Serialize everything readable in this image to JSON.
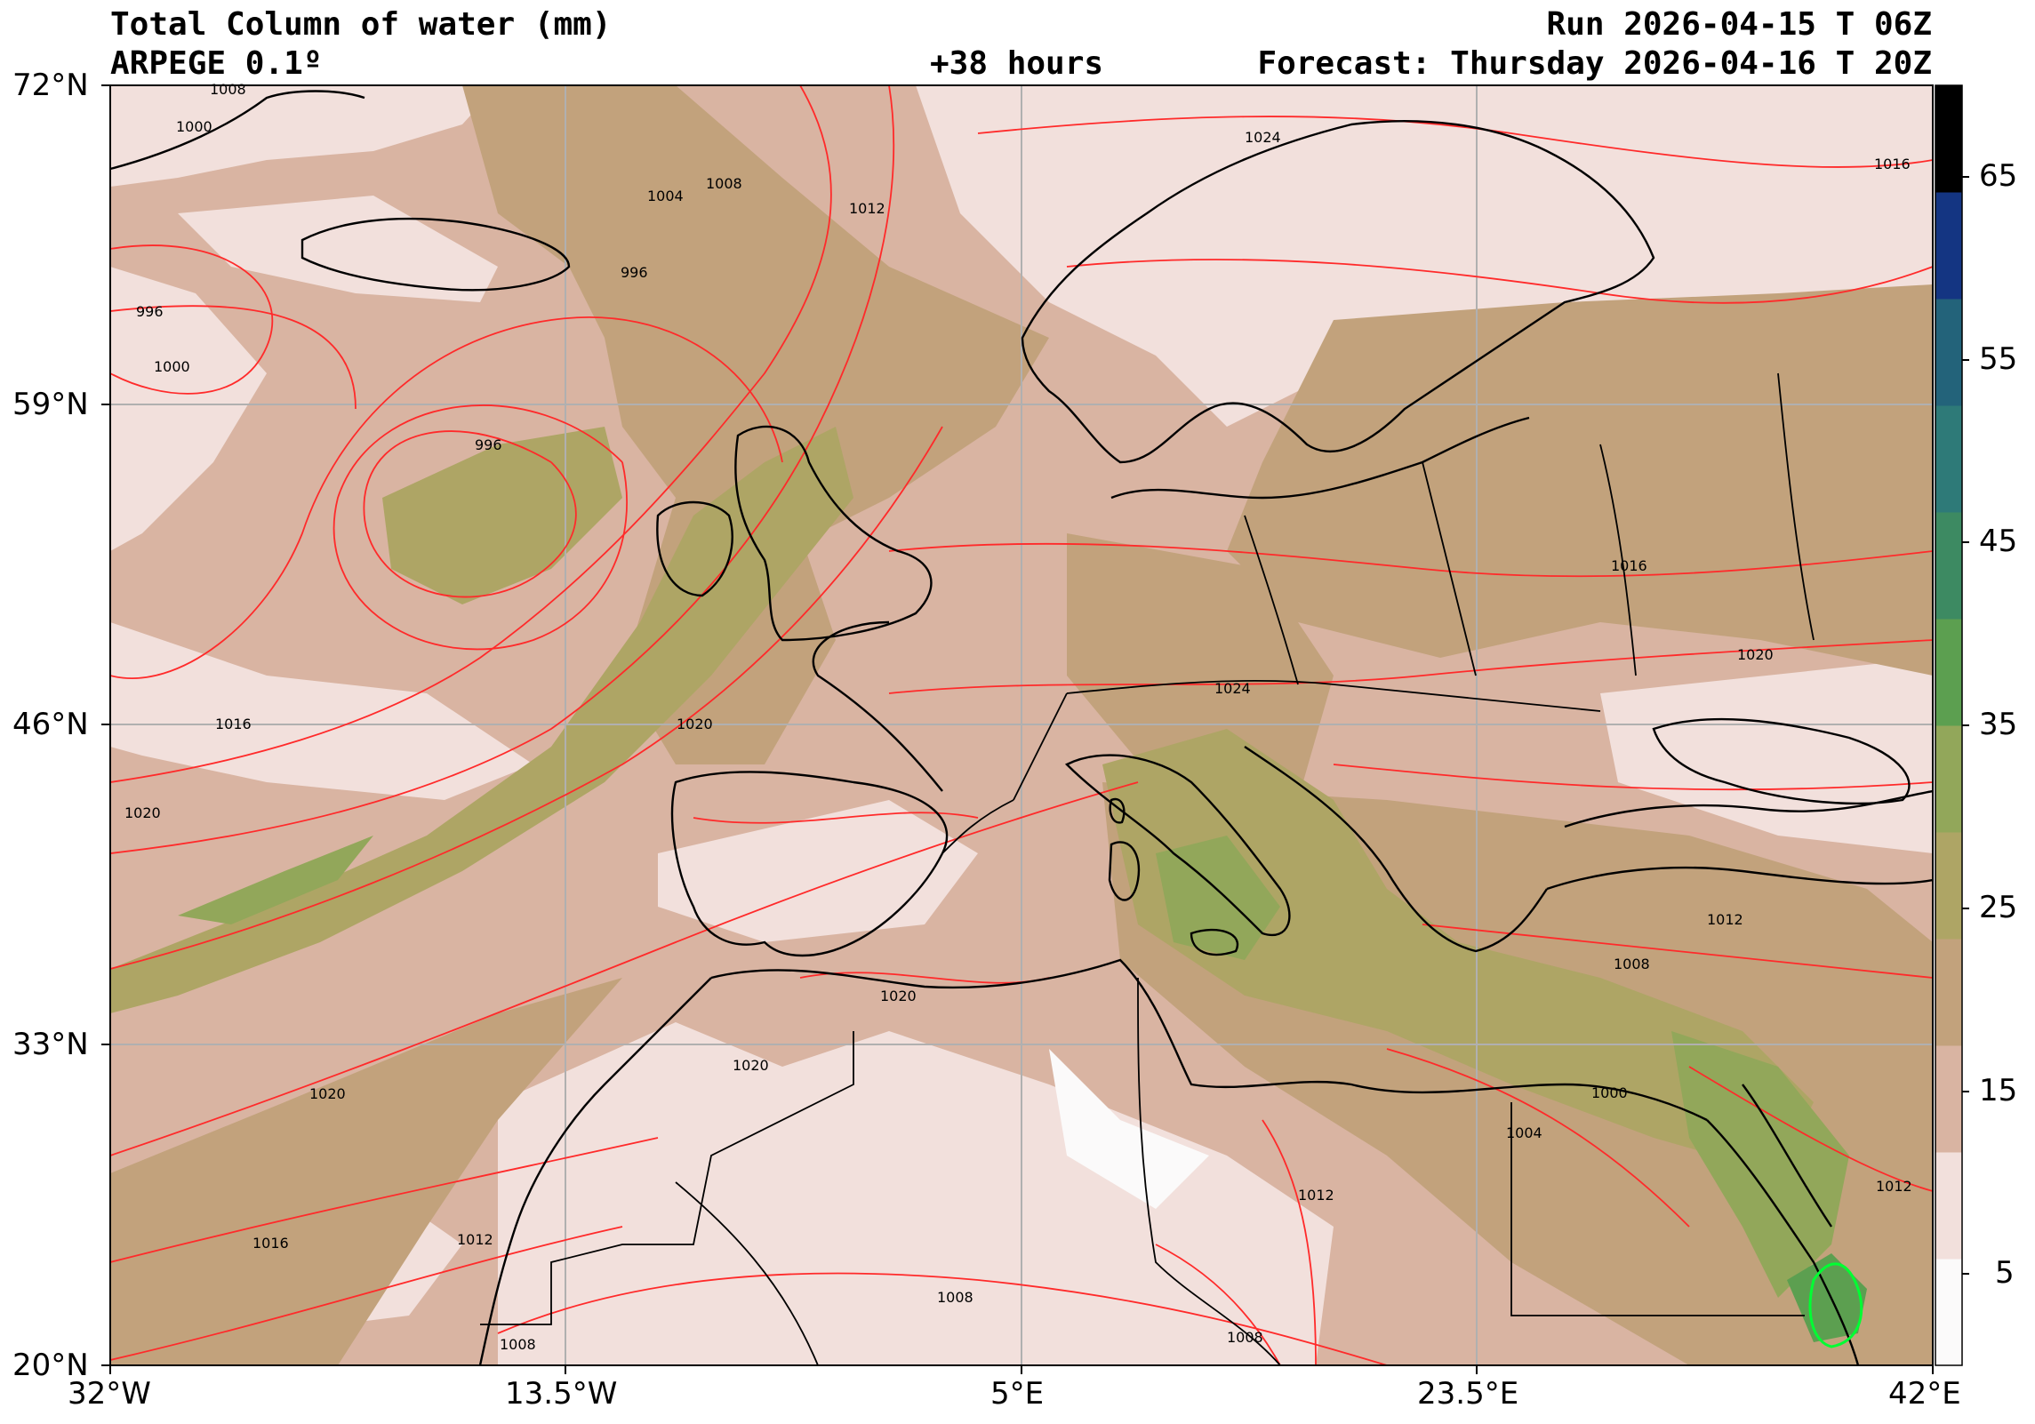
{
  "header": {
    "title": "Total Column of water (mm)",
    "model": "ARPEGE 0.1º",
    "lead": "+38 hours",
    "run": "Run 2026-04-15 T 06Z",
    "forecast": "Forecast: Thursday 2026-04-16 T 20Z"
  },
  "axes": {
    "lat_labels": [
      "72°N",
      "59°N",
      "46°N",
      "33°N",
      "20°N"
    ],
    "lon_labels": [
      "32°W",
      "13.5°W",
      "5°E",
      "23.5°E",
      "42°E"
    ]
  },
  "colorbar": {
    "labels": [
      "65",
      "55",
      "45",
      "35",
      "25",
      "15",
      "5"
    ],
    "colors": [
      "#fbfafa",
      "#f2e0dc",
      "#d9b4a2",
      "#c2a27c",
      "#aea565",
      "#92a75a",
      "#5c9f50",
      "#3d8a62",
      "#2e7a78",
      "#23637a",
      "#143582",
      "#000000"
    ]
  },
  "isobars": [
    "1008",
    "1000",
    "1024",
    "1004",
    "1008",
    "1012",
    "996",
    "996",
    "1000",
    "996",
    "1016",
    "1016",
    "1020",
    "1020",
    "1024",
    "1016",
    "1020",
    "1020",
    "1012",
    "1008",
    "1020",
    "1020",
    "1000",
    "1004",
    "1012",
    "1016",
    "1012",
    "1012",
    "1008",
    "1008",
    "1008"
  ],
  "colors": {
    "isobar": "#ff2a2a",
    "coast": "#000000",
    "grid": "#b0b0b0",
    "contour_green": "#00ff33"
  }
}
